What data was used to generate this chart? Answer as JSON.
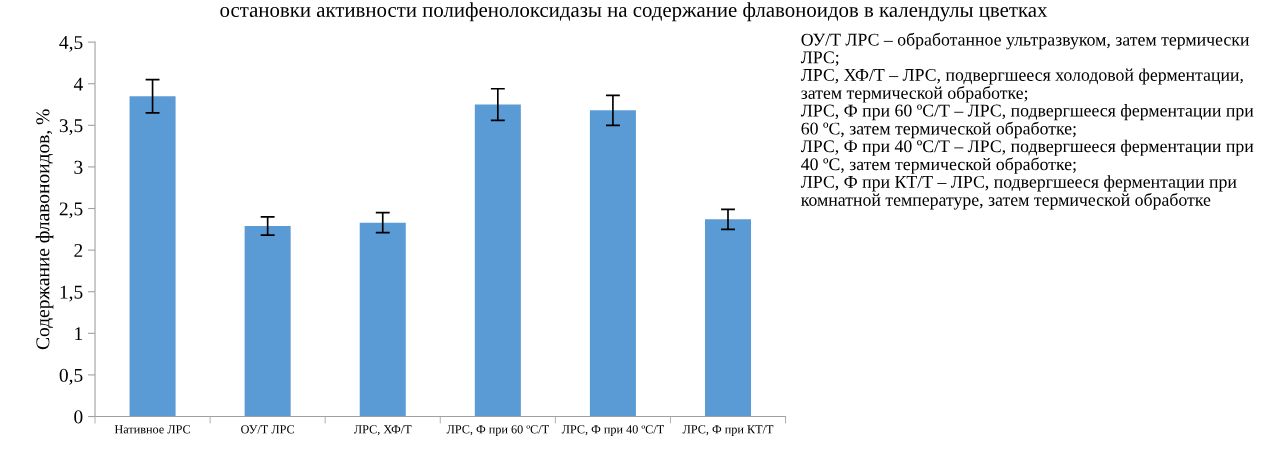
{
  "chart_data": {
    "type": "bar",
    "title": "остановки активности полифенолоксидазы на содержание флавоноидов в календулы цветках",
    "ylabel": "Содержание флавоноидов, %",
    "categories": [
      "Нативное ЛРС",
      "ОУ/Т ЛРС",
      "ЛРС, ХФ/Т",
      "ЛРС, Ф при 60 ºС/Т",
      "ЛРС, Ф при 40 ºС/Т",
      "ЛРС, Ф при КТ/Т"
    ],
    "values": [
      3.85,
      2.29,
      2.33,
      3.75,
      3.68,
      2.37
    ],
    "errors": [
      0.2,
      0.11,
      0.12,
      0.19,
      0.18,
      0.12
    ],
    "color": "#5b9bd5",
    "ylim": [
      0,
      4.5
    ],
    "yticks": [
      0,
      {
        "value": 0.5,
        "label": "0,5"
      },
      1,
      {
        "value": 1.5,
        "label": "1,5"
      },
      2,
      {
        "value": 2.5,
        "label": "2,5"
      },
      3,
      {
        "value": 3.5,
        "label": "3,5"
      },
      4,
      {
        "value": 4.5,
        "label": "4,5"
      }
    ],
    "grid": false,
    "legend": false,
    "annotations": [
      "ОУ/Т ЛРС – обработанное ультразвуком, затем термически ЛРС;",
      "ЛРС, ХФ/Т – ЛРС, подвергшееся холодовой ферментации, затем термической обработке;",
      "ЛРС, Ф при 60 ºС/Т – ЛРС, подвергшееся ферментации при 60 ºС, затем термической обработке;",
      "ЛРС, Ф при 40 ºС/Т – ЛРС, подвергшееся ферментации при 40 ºС, затем термической обработке;",
      "ЛРС, Ф при КТ/Т – ЛРС, подвергшееся ферментации при комнатной температуре, затем термической обработке"
    ]
  }
}
